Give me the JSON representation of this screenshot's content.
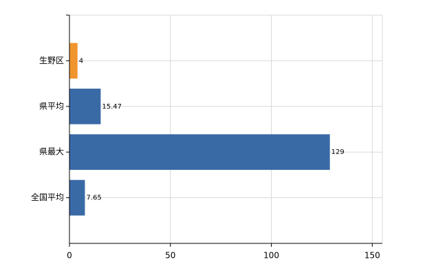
{
  "chart_data": {
    "type": "barh",
    "categories": [
      "生野区",
      "県平均",
      "県最大",
      "全国平均"
    ],
    "values": [
      4,
      15.47,
      129,
      7.65
    ],
    "colors": [
      "#f0952e",
      "#3a6aa6",
      "#3a6aa6",
      "#3a6aa6"
    ],
    "xlim": [
      0,
      155
    ],
    "xticks": [
      0,
      50,
      100,
      150
    ],
    "grid": true
  }
}
